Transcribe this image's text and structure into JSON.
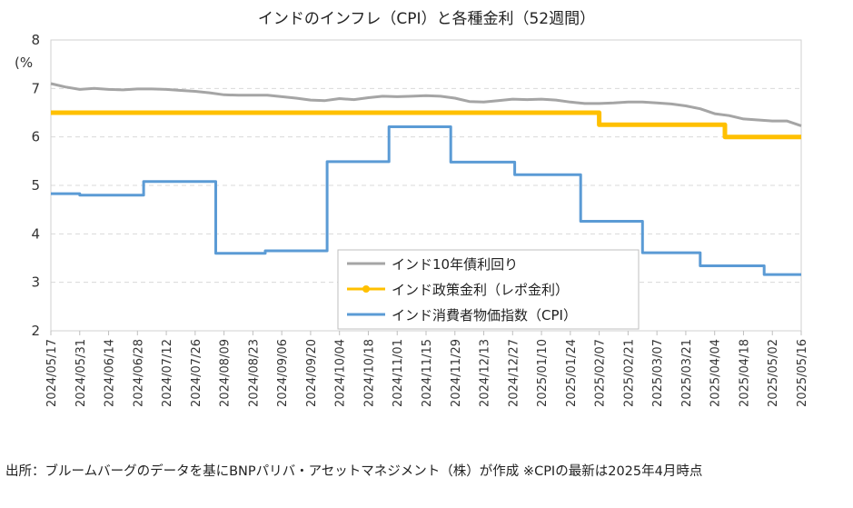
{
  "chart_data": {
    "type": "line",
    "title": "インドのインフレ（CPI）と各種金利（52週間）",
    "y_unit_label": "(%",
    "ylim": [
      2,
      8
    ],
    "yticks": [
      "2",
      "3",
      "4",
      "5",
      "6",
      "7",
      "8"
    ],
    "x_tick_labels": [
      "2024/05/17",
      "2024/05/31",
      "2024/06/14",
      "2024/06/28",
      "2024/07/12",
      "2024/07/26",
      "2024/08/09",
      "2024/08/23",
      "2024/09/06",
      "2024/09/20",
      "2024/10/04",
      "2024/10/18",
      "2024/11/01",
      "2024/11/15",
      "2024/11/29",
      "2024/12/13",
      "2024/12/27",
      "2025/01/10",
      "2025/01/24",
      "2025/02/07",
      "2025/02/21",
      "2025/03/07",
      "2025/03/21",
      "2025/04/04",
      "2025/04/18",
      "2025/05/02",
      "2025/05/16"
    ],
    "x_range": [
      "2024/05/17",
      "2025/05/16"
    ],
    "grid": "horizontal dashed",
    "legend_position": "inside, lower-middle",
    "series": [
      {
        "name": "インド10年債利回り",
        "color": "#a5a5a5",
        "style": "line",
        "points": [
          [
            "2024-05-17",
            7.1
          ],
          [
            "2024-05-24",
            7.03
          ],
          [
            "2024-05-31",
            6.98
          ],
          [
            "2024-06-07",
            7.0
          ],
          [
            "2024-06-14",
            6.98
          ],
          [
            "2024-06-21",
            6.97
          ],
          [
            "2024-06-28",
            6.99
          ],
          [
            "2024-07-05",
            6.99
          ],
          [
            "2024-07-12",
            6.98
          ],
          [
            "2024-07-19",
            6.96
          ],
          [
            "2024-07-26",
            6.94
          ],
          [
            "2024-08-02",
            6.91
          ],
          [
            "2024-08-09",
            6.87
          ],
          [
            "2024-08-16",
            6.86
          ],
          [
            "2024-08-23",
            6.86
          ],
          [
            "2024-08-30",
            6.86
          ],
          [
            "2024-09-06",
            6.83
          ],
          [
            "2024-09-13",
            6.8
          ],
          [
            "2024-09-20",
            6.76
          ],
          [
            "2024-09-27",
            6.75
          ],
          [
            "2024-10-04",
            6.79
          ],
          [
            "2024-10-11",
            6.77
          ],
          [
            "2024-10-18",
            6.81
          ],
          [
            "2024-10-25",
            6.84
          ],
          [
            "2024-11-01",
            6.83
          ],
          [
            "2024-11-08",
            6.84
          ],
          [
            "2024-11-15",
            6.85
          ],
          [
            "2024-11-22",
            6.84
          ],
          [
            "2024-11-29",
            6.8
          ],
          [
            "2024-12-06",
            6.73
          ],
          [
            "2024-12-13",
            6.72
          ],
          [
            "2024-12-20",
            6.75
          ],
          [
            "2024-12-27",
            6.78
          ],
          [
            "2025-01-03",
            6.77
          ],
          [
            "2025-01-10",
            6.78
          ],
          [
            "2025-01-17",
            6.76
          ],
          [
            "2025-01-24",
            6.72
          ],
          [
            "2025-01-31",
            6.69
          ],
          [
            "2025-02-07",
            6.69
          ],
          [
            "2025-02-14",
            6.7
          ],
          [
            "2025-02-21",
            6.72
          ],
          [
            "2025-02-28",
            6.72
          ],
          [
            "2025-03-07",
            6.7
          ],
          [
            "2025-03-14",
            6.68
          ],
          [
            "2025-03-21",
            6.64
          ],
          [
            "2025-03-28",
            6.58
          ],
          [
            "2025-04-04",
            6.48
          ],
          [
            "2025-04-11",
            6.44
          ],
          [
            "2025-04-18",
            6.37
          ],
          [
            "2025-04-25",
            6.35
          ],
          [
            "2025-05-02",
            6.33
          ],
          [
            "2025-05-09",
            6.33
          ],
          [
            "2025-05-16",
            6.23
          ]
        ]
      },
      {
        "name": "インド政策金利（レポ金利）",
        "color": "#ffc000",
        "style": "step",
        "points": [
          [
            "2024-05-17",
            6.5
          ],
          [
            "2025-02-07",
            6.5
          ],
          [
            "2025-02-07",
            6.25
          ],
          [
            "2025-04-09",
            6.25
          ],
          [
            "2025-04-09",
            6.0
          ],
          [
            "2025-05-16",
            6.0
          ]
        ]
      },
      {
        "name": "インド消費者物価指数（CPI）",
        "color": "#5b9bd5",
        "style": "step",
        "points": [
          [
            "2024-05-17",
            4.83
          ],
          [
            "2024-05-31",
            4.83
          ],
          [
            "2024-05-31",
            4.8
          ],
          [
            "2024-07-01",
            4.8
          ],
          [
            "2024-07-01",
            5.08
          ],
          [
            "2024-08-05",
            5.08
          ],
          [
            "2024-08-05",
            3.6
          ],
          [
            "2024-08-29",
            3.6
          ],
          [
            "2024-08-29",
            3.65
          ],
          [
            "2024-09-28",
            3.65
          ],
          [
            "2024-09-28",
            5.49
          ],
          [
            "2024-10-28",
            5.49
          ],
          [
            "2024-10-28",
            6.21
          ],
          [
            "2024-11-27",
            6.21
          ],
          [
            "2024-11-27",
            5.48
          ],
          [
            "2024-12-28",
            5.48
          ],
          [
            "2024-12-28",
            5.22
          ],
          [
            "2025-01-29",
            5.22
          ],
          [
            "2025-01-29",
            4.26
          ],
          [
            "2025-02-28",
            4.26
          ],
          [
            "2025-02-28",
            3.61
          ],
          [
            "2025-03-28",
            3.61
          ],
          [
            "2025-03-28",
            3.34
          ],
          [
            "2025-04-28",
            3.34
          ],
          [
            "2025-04-28",
            3.16
          ],
          [
            "2025-05-16",
            3.16
          ]
        ]
      }
    ]
  },
  "source_note": "出所：ブルームバーグのデータを基にBNPパリバ・アセットマネジメント（株）が作成 ※CPIの最新は2025年4月時点"
}
